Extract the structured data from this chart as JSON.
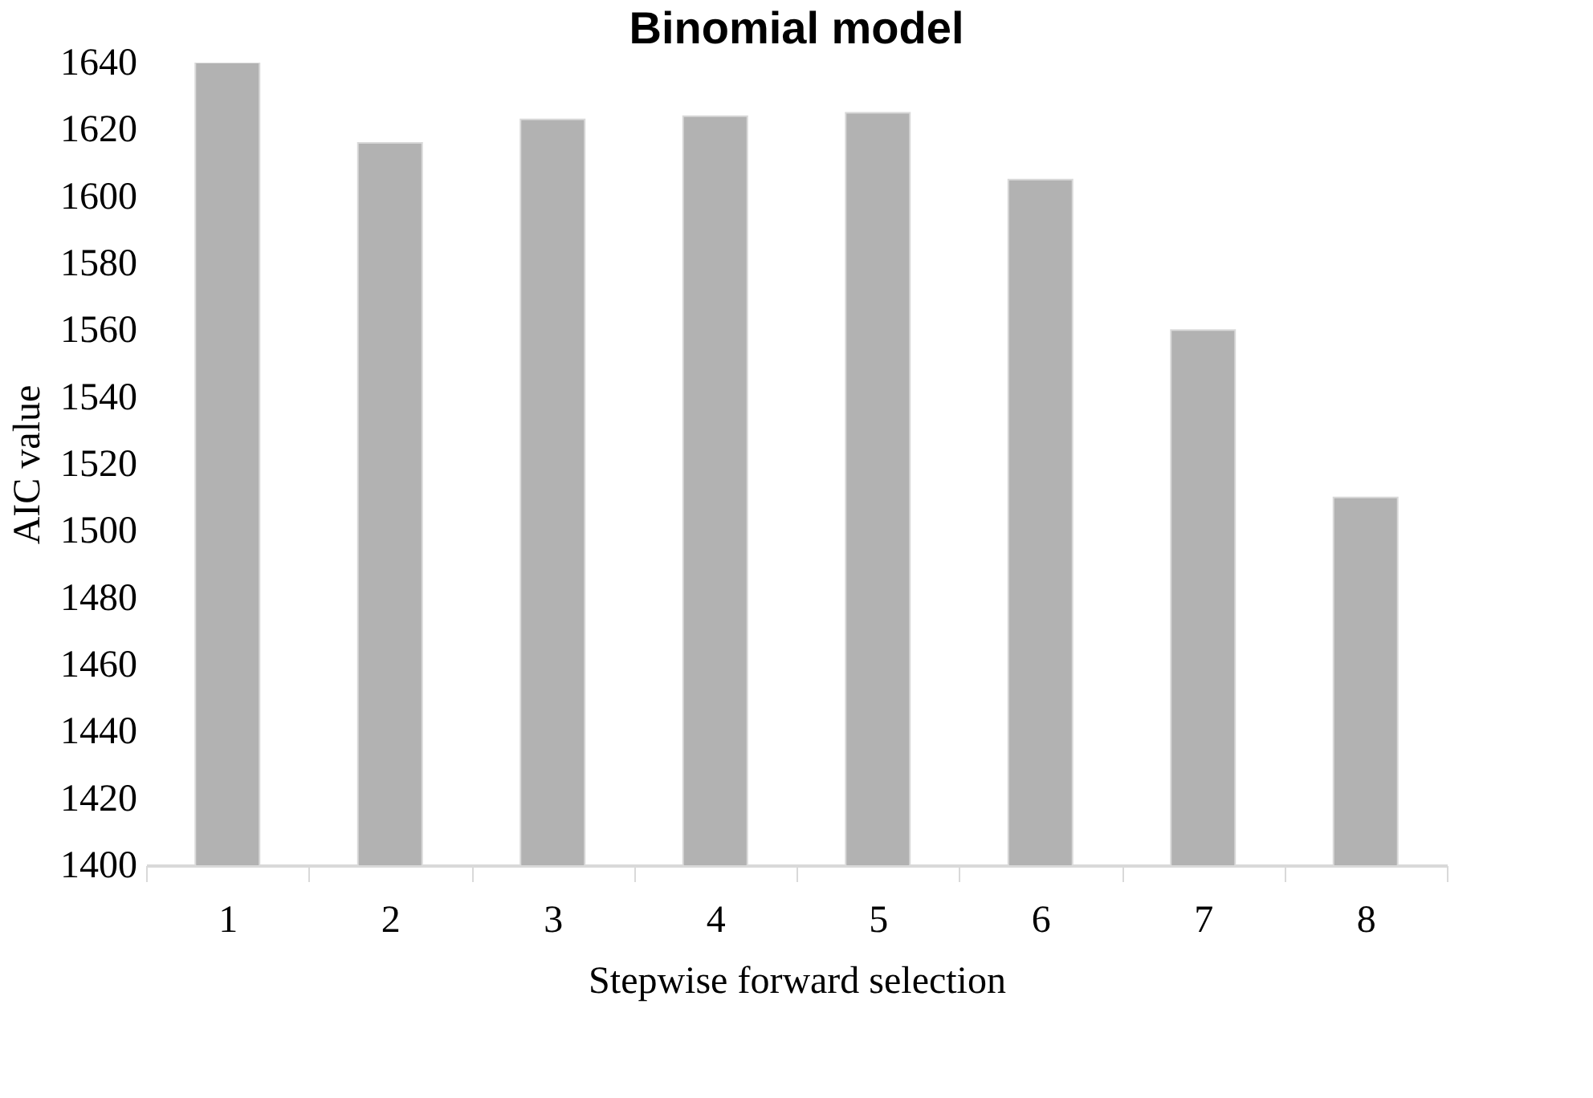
{
  "chart_data": {
    "type": "bar",
    "title": "Binomial model",
    "xlabel": "Stepwise forward selection",
    "ylabel": "AIC value",
    "categories": [
      "1",
      "2",
      "3",
      "4",
      "5",
      "6",
      "7",
      "8"
    ],
    "values": [
      1640,
      1616,
      1623,
      1624,
      1625,
      1605,
      1560,
      1510
    ],
    "color": "#b2b2b2",
    "ylim": [
      1400,
      1640
    ],
    "yticks": [
      1400,
      1420,
      1440,
      1460,
      1480,
      1500,
      1520,
      1540,
      1560,
      1580,
      1600,
      1620,
      1640
    ],
    "grid": false
  }
}
